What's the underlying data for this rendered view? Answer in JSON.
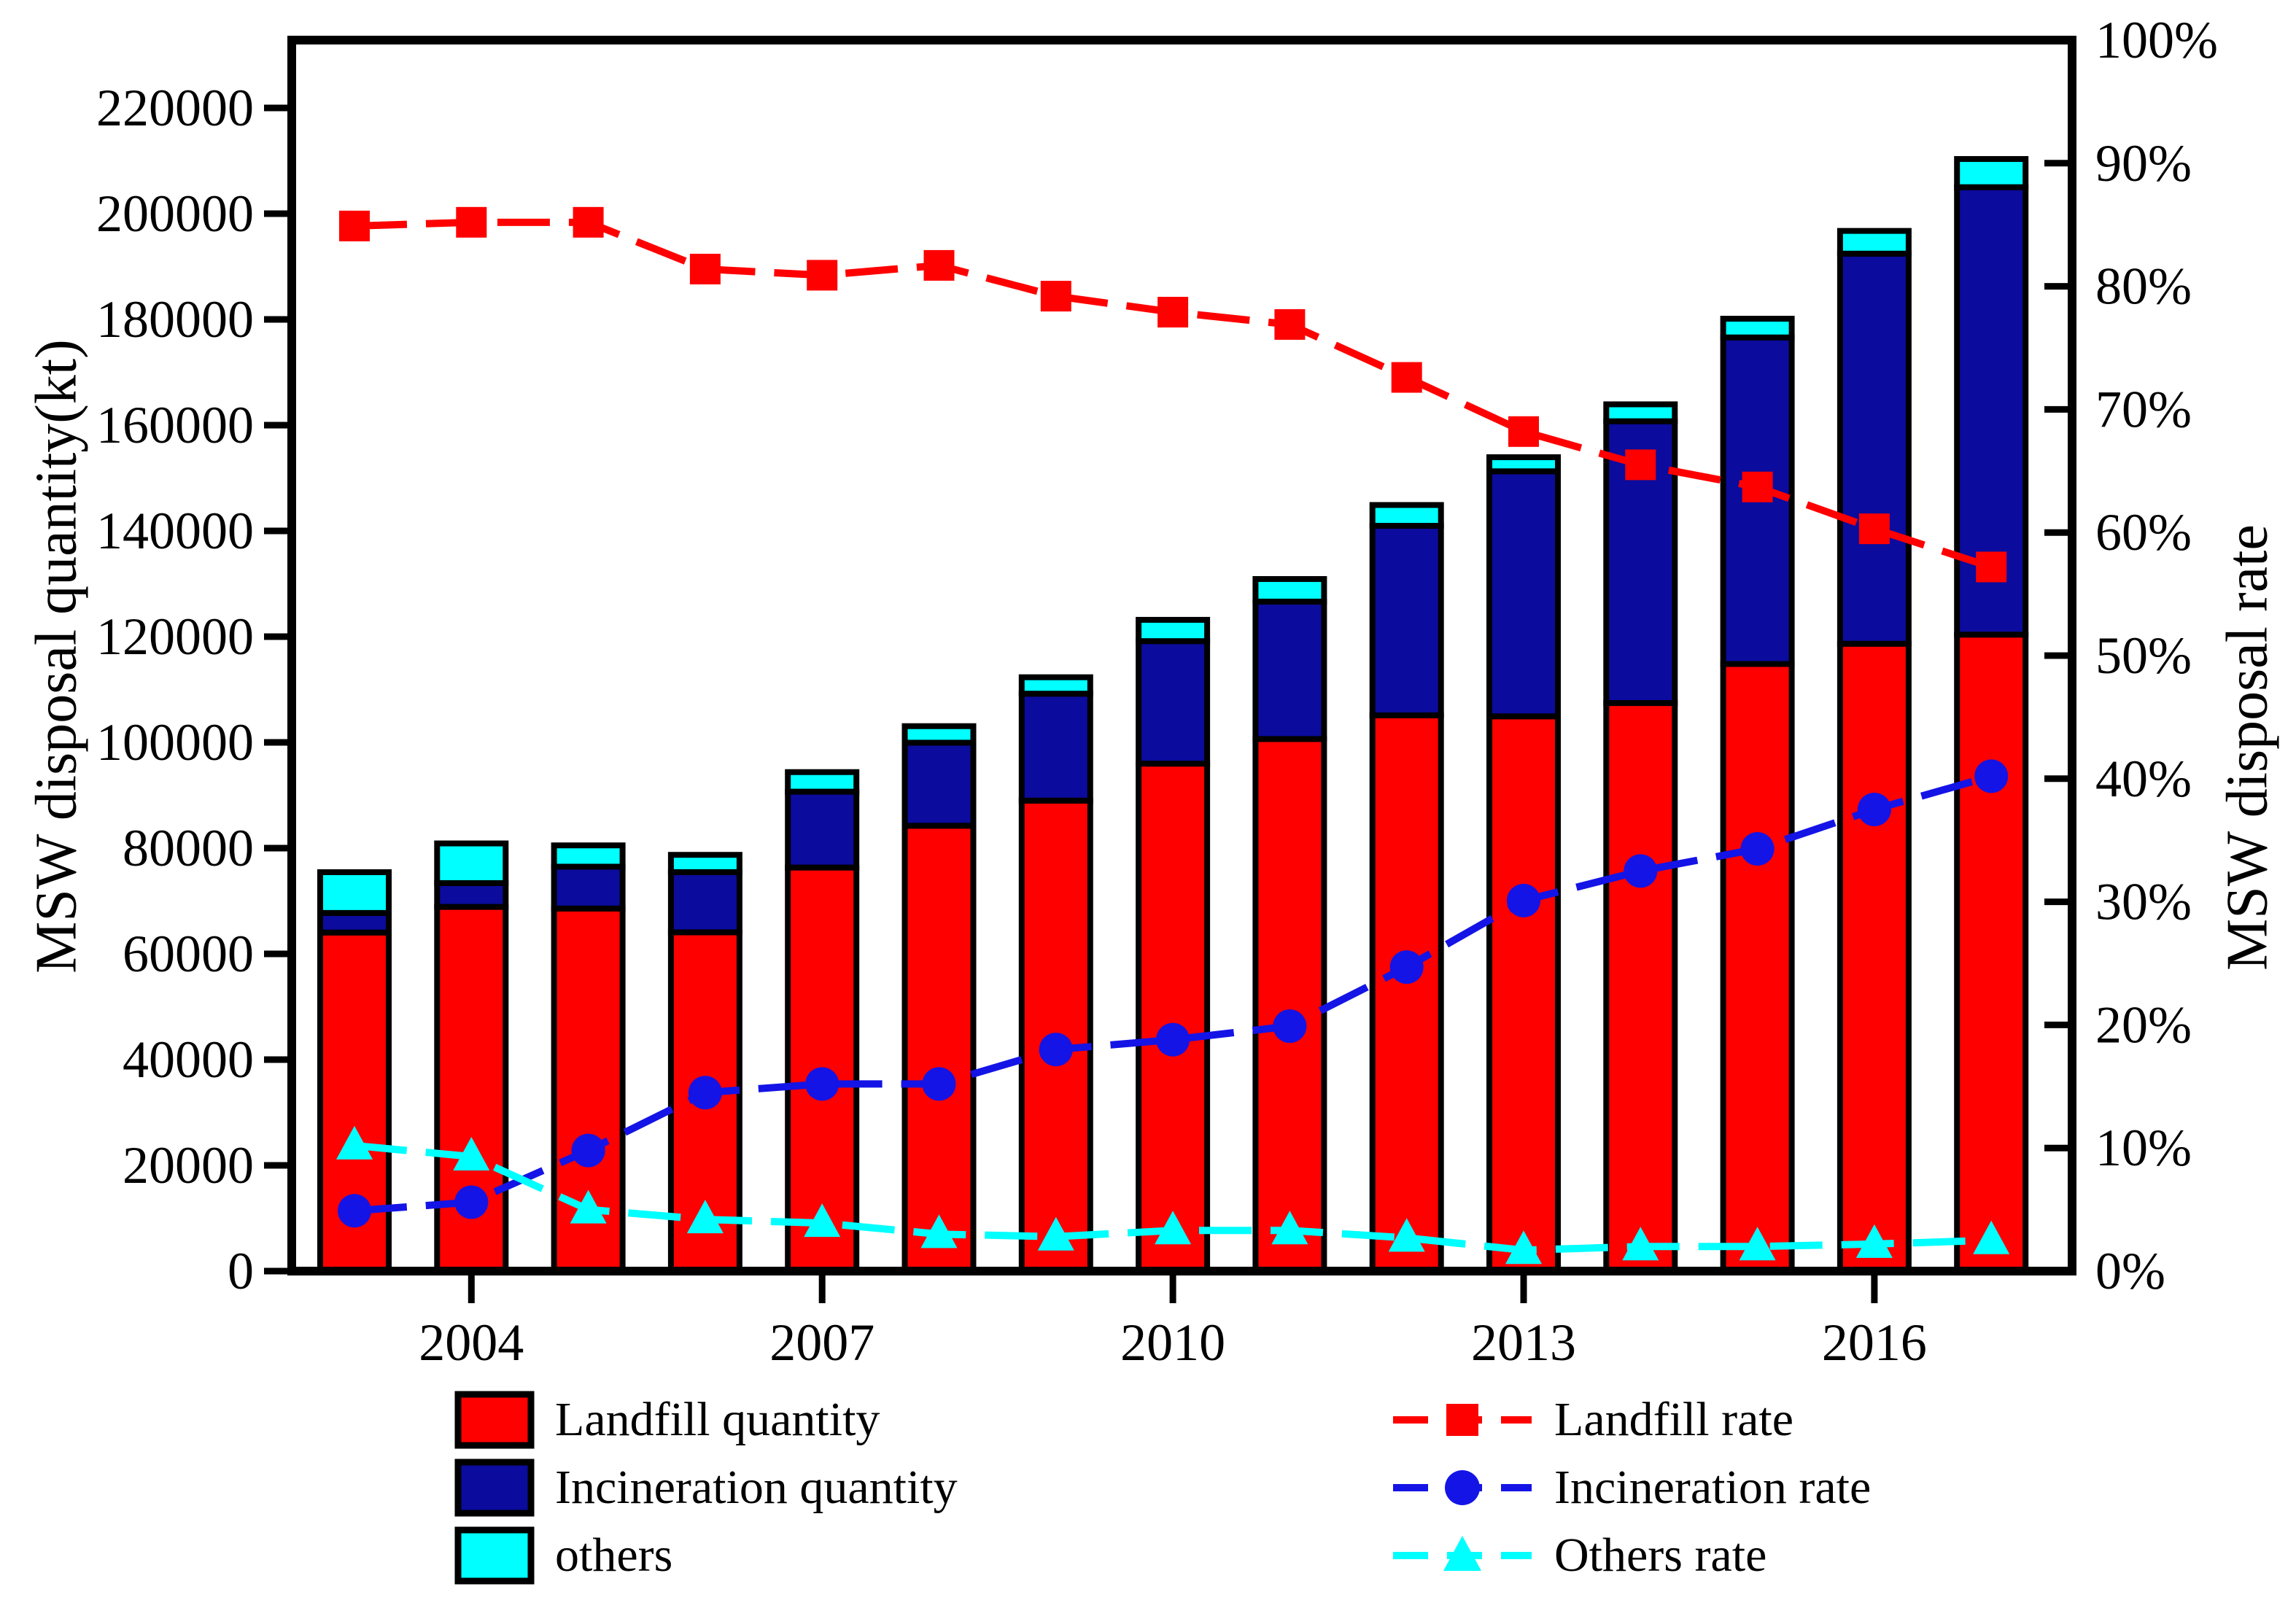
{
  "figure": {
    "left_axis_title": "MSW disposal quantity(kt)",
    "right_axis_title": "MSW disposal rate",
    "background_color": "#FFFFFF",
    "axis_color": "#000000"
  },
  "legend": {
    "col1": [
      "Landfill quantity",
      "Incineration quantity",
      "others"
    ],
    "col2": [
      "Landfill rate",
      "Incineration rate",
      "Others rate"
    ]
  },
  "chart_data": {
    "type": "combo: stacked bar (left axis) + dashed marker lines (right axis)",
    "categories": [
      "2003",
      "2004",
      "2005",
      "2006",
      "2007",
      "2008",
      "2009",
      "2010",
      "2011",
      "2012",
      "2013",
      "2014",
      "2015",
      "2016",
      "2017"
    ],
    "x_axis": {
      "tick_labels": [
        "2004",
        "2007",
        "2010",
        "2013",
        "2016"
      ],
      "tick_slots": [
        1,
        4,
        7,
        10,
        13
      ]
    },
    "left_axis": {
      "title": "MSW disposal quantity(kt)",
      "unit": "kt",
      "min": 0,
      "tick_step": 20000,
      "tick_labels": [
        "0",
        "20000",
        "40000",
        "60000",
        "80000",
        "100000",
        "120000",
        "140000",
        "160000",
        "180000",
        "200000",
        "220000"
      ]
    },
    "right_axis": {
      "title": "MSW disposal rate",
      "unit": "%",
      "min": 0,
      "max": 100,
      "tick_step": 10,
      "tick_labels": [
        "0%",
        "10%",
        "20%",
        "30%",
        "40%",
        "50%",
        "60%",
        "70%",
        "80%",
        "90%",
        "100%"
      ]
    },
    "bar_series": [
      {
        "name": "Landfill quantity",
        "color": "#FF0000",
        "values": [
          64040,
          68890,
          68580,
          64080,
          76330,
          84240,
          88990,
          95980,
          100640,
          105120,
          104930,
          107440,
          114830,
          118660,
          120380
        ]
      },
      {
        "name": "Incineration quantity",
        "color": "#0B0B9D",
        "values": [
          3700,
          4490,
          7910,
          11380,
          14350,
          15700,
          20220,
          23170,
          25990,
          35840,
          46340,
          53300,
          61760,
          73780,
          84630
        ]
      },
      {
        "name": "others",
        "color": "#00FFFF",
        "values": [
          7710,
          7510,
          4030,
          3270,
          3700,
          3130,
          3110,
          4030,
          4270,
          3940,
          2670,
          3200,
          3540,
          4300,
          5330
        ]
      }
    ],
    "bar_totals": [
      75450,
      80890,
      80520,
      78730,
      94380,
      103070,
      112320,
      123180,
      130900,
      144900,
      153940,
      163940,
      180130,
      196740,
      210340
    ],
    "line_series": [
      {
        "name": "Landfill rate",
        "color": "#FF0000",
        "marker": "square",
        "values": [
          84.9,
          85.2,
          85.2,
          81.4,
          80.9,
          81.7,
          79.2,
          77.9,
          76.9,
          72.6,
          68.2,
          65.5,
          63.7,
          60.3,
          57.2
        ]
      },
      {
        "name": "Incineration rate",
        "color": "#1414E6",
        "marker": "circle",
        "values": [
          4.9,
          5.6,
          9.8,
          14.5,
          15.2,
          15.2,
          18.0,
          18.8,
          19.9,
          24.7,
          30.1,
          32.5,
          34.3,
          37.5,
          40.2
        ]
      },
      {
        "name": "Others rate",
        "color": "#00FFFF",
        "marker": "triangle",
        "values": [
          10.2,
          9.3,
          5.0,
          4.2,
          3.9,
          3.0,
          2.8,
          3.3,
          3.3,
          2.7,
          1.7,
          2.0,
          2.0,
          2.2,
          2.5
        ]
      }
    ],
    "legend_position": "bottom",
    "grid": false
  }
}
